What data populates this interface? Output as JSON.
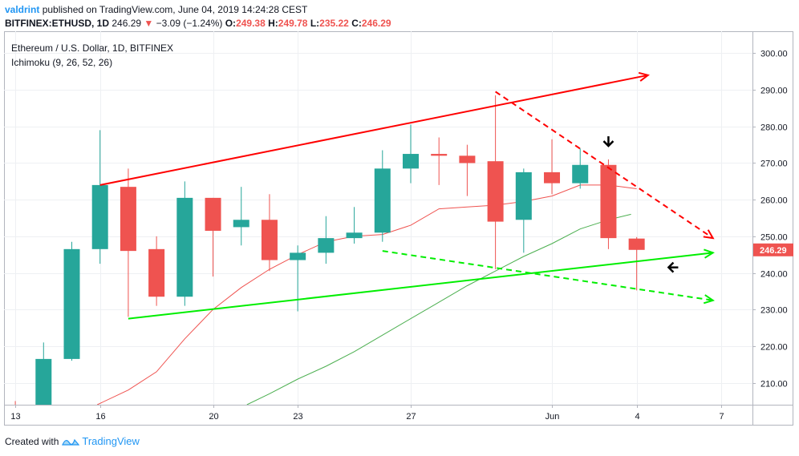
{
  "header": {
    "user": "valdrint",
    "published_text": "published on TradingView.com, June 04, 2019 14:24:28 CEST",
    "symbol": "BITFINEX:ETHUSD, 1D",
    "last": "246.29",
    "change": "−3.09 (−1.24%)",
    "o_label": "O:",
    "o_value": "249.38",
    "h_label": "H:",
    "h_value": "249.78",
    "l_label": "L:",
    "l_value": "235.22",
    "c_label": "C:",
    "c_value": "246.29"
  },
  "legend": {
    "instrument": "Ethereum / U.S. Dollar, 1D, BITFINEX",
    "indicator": "Ichimoku (9, 26, 52, 26)"
  },
  "footer": {
    "created_with": "Created with",
    "brand": "TradingView"
  },
  "colors": {
    "up": "#26a69a",
    "down": "#ef5350",
    "red_line": "#ff0000",
    "green_line": "#00ee00",
    "conversion": "#ef5350",
    "base": "#4caf50",
    "arrow": "#000000"
  },
  "chart_data": {
    "type": "candlestick",
    "ylim": [
      204,
      306
    ],
    "yticks": [
      210,
      220,
      230,
      240,
      250,
      260,
      270,
      280,
      290,
      300
    ],
    "ytick_labels": [
      "210.00",
      "220.00",
      "230.00",
      "240.00",
      "250.00",
      "260.00",
      "270.00",
      "280.00",
      "290.00",
      "300.00"
    ],
    "xticks": [
      {
        "day": 0,
        "label": "13"
      },
      {
        "day": 3,
        "label": "16"
      },
      {
        "day": 7,
        "label": "20"
      },
      {
        "day": 10,
        "label": "23"
      },
      {
        "day": 14,
        "label": "27"
      },
      {
        "day": 19,
        "label": "Jun"
      },
      {
        "day": 22,
        "label": "4"
      },
      {
        "day": 25,
        "label": "7"
      }
    ],
    "xlim": [
      -0.4,
      26.1
    ],
    "last_price_label": "246.29",
    "last_price": 246.29,
    "candles": [
      {
        "day": 0,
        "date": "May 13",
        "o": 204,
        "h": 205,
        "l": 200,
        "c": 203
      },
      {
        "day": 1,
        "date": "May 14",
        "o": 204,
        "h": 221,
        "l": 200,
        "c": 216.5
      },
      {
        "day": 2,
        "date": "May 15",
        "o": 216.5,
        "h": 248.5,
        "l": 216,
        "c": 246.5
      },
      {
        "day": 3,
        "date": "May 16",
        "o": 246.5,
        "h": 279,
        "l": 242.5,
        "c": 264
      },
      {
        "day": 4,
        "date": "May 17",
        "o": 263.5,
        "h": 268.5,
        "l": 228,
        "c": 246
      },
      {
        "day": 5,
        "date": "May 18",
        "o": 246.5,
        "h": 250,
        "l": 231,
        "c": 233.5
      },
      {
        "day": 6,
        "date": "May 19",
        "o": 233.5,
        "h": 265,
        "l": 231,
        "c": 260.5
      },
      {
        "day": 7,
        "date": "May 20",
        "o": 260.5,
        "h": 260.5,
        "l": 239,
        "c": 251.5
      },
      {
        "day": 8,
        "date": "May 21",
        "o": 252.5,
        "h": 263.5,
        "l": 247.5,
        "c": 254.5
      },
      {
        "day": 9,
        "date": "May 22",
        "o": 254.5,
        "h": 261.5,
        "l": 240.5,
        "c": 243.5
      },
      {
        "day": 10,
        "date": "May 23",
        "o": 243.5,
        "h": 247.5,
        "l": 229.5,
        "c": 245.5
      },
      {
        "day": 11,
        "date": "May 24",
        "o": 245.5,
        "h": 255.5,
        "l": 242.5,
        "c": 249.5
      },
      {
        "day": 12,
        "date": "May 25",
        "o": 249.5,
        "h": 258,
        "l": 248,
        "c": 251
      },
      {
        "day": 13,
        "date": "May 26",
        "o": 251,
        "h": 273.5,
        "l": 248.5,
        "c": 268.5
      },
      {
        "day": 14,
        "date": "May 27",
        "o": 268.5,
        "h": 280.5,
        "l": 264.5,
        "c": 272.5
      },
      {
        "day": 15,
        "date": "May 28",
        "o": 272.5,
        "h": 277,
        "l": 264,
        "c": 272
      },
      {
        "day": 16,
        "date": "May 29",
        "o": 272,
        "h": 275,
        "l": 261,
        "c": 270
      },
      {
        "day": 17,
        "date": "May 30",
        "o": 270.5,
        "h": 288.5,
        "l": 241,
        "c": 254
      },
      {
        "day": 18,
        "date": "May 31",
        "o": 254.5,
        "h": 268.5,
        "l": 245.5,
        "c": 267.5
      },
      {
        "day": 19,
        "date": "Jun 01",
        "o": 267.5,
        "h": 276.5,
        "l": 261.5,
        "c": 264.5
      },
      {
        "day": 20,
        "date": "Jun 02",
        "o": 264.5,
        "h": 274,
        "l": 263,
        "c": 269.5
      },
      {
        "day": 21,
        "date": "Jun 03",
        "o": 269.5,
        "h": 271,
        "l": 246.5,
        "c": 249.5
      },
      {
        "day": 22,
        "date": "Jun 04",
        "o": 249.38,
        "h": 249.78,
        "l": 235.22,
        "c": 246.29
      }
    ],
    "conversion_line": [
      [
        2.9,
        204
      ],
      [
        4,
        208
      ],
      [
        5,
        213
      ],
      [
        6,
        222
      ],
      [
        7,
        230
      ],
      [
        8,
        236
      ],
      [
        9,
        241
      ],
      [
        10,
        245
      ],
      [
        11,
        248.5
      ],
      [
        12,
        250
      ],
      [
        13,
        250.5
      ],
      [
        14,
        253
      ],
      [
        15,
        257.5
      ],
      [
        16,
        258
      ],
      [
        17,
        258.5
      ],
      [
        18,
        259.5
      ],
      [
        19,
        261
      ],
      [
        20,
        264
      ],
      [
        21,
        264
      ],
      [
        22,
        263
      ]
    ],
    "base_line": [
      [
        8.2,
        204
      ],
      [
        9,
        207
      ],
      [
        10,
        211
      ],
      [
        11,
        214.5
      ],
      [
        12,
        218.5
      ],
      [
        13,
        223
      ],
      [
        14,
        227.5
      ],
      [
        15,
        232
      ],
      [
        16,
        236.5
      ],
      [
        17,
        240.5
      ],
      [
        18,
        244.5
      ],
      [
        19,
        248
      ],
      [
        20,
        252
      ],
      [
        21,
        254.5
      ],
      [
        21.8,
        256
      ]
    ],
    "annotations": [
      {
        "kind": "solid-arrow",
        "color": "red",
        "from": [
          3,
          264
        ],
        "to": [
          22.4,
          294
        ]
      },
      {
        "kind": "dashed-arrow",
        "color": "red",
        "from": [
          17,
          289.5
        ],
        "to": [
          24.7,
          249.5
        ]
      },
      {
        "kind": "solid-arrow",
        "color": "green",
        "from": [
          4,
          227.5
        ],
        "to": [
          24.7,
          245.5
        ]
      },
      {
        "kind": "dashed-arrow",
        "color": "green",
        "from": [
          13,
          246
        ],
        "to": [
          24.7,
          232.5
        ]
      },
      {
        "kind": "pointer-down",
        "color": "black",
        "at": [
          21.0,
          276
        ]
      },
      {
        "kind": "pointer-left",
        "color": "black",
        "at": [
          23.3,
          241.5
        ]
      }
    ]
  }
}
